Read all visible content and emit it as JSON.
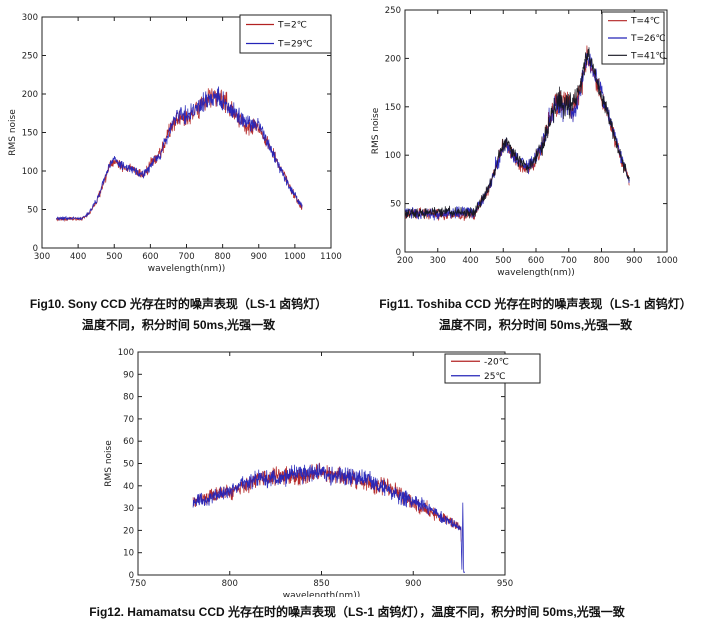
{
  "page": {
    "background": "#ffffff"
  },
  "figures": [
    {
      "id": "Fig10",
      "device": "Sony CCD",
      "caption": [
        "Fig10. Sony CCD 光存在时的噪声表现（LS-1 卤钨灯）",
        "温度不同，积分时间 50ms,光强一致"
      ]
    },
    {
      "id": "Fig11",
      "device": "Toshiba CCD",
      "caption": [
        "Fig11. Toshiba CCD 光存在时的噪声表现（LS-1 卤钨灯）",
        "温度不同，积分时间 50ms,光强一致"
      ]
    },
    {
      "id": "Fig12",
      "device": "Hamamatsu CCD",
      "caption": [
        "Fig12. Hamamatsu CCD 光存在时的噪声表现（LS-1 卤钨灯），温度不同，积分时间 50ms,光强一致"
      ]
    }
  ],
  "chart_data": [
    {
      "type": "line",
      "title": "",
      "xlabel": "wavelength(nm))",
      "ylabel": "RMS noise",
      "xlim": [
        300,
        1100
      ],
      "ylim": [
        0,
        300
      ],
      "xticks": [
        300,
        400,
        500,
        600,
        700,
        800,
        900,
        1000,
        1100
      ],
      "yticks": [
        0,
        50,
        100,
        150,
        200,
        250,
        300
      ],
      "grid": false,
      "legend_position": "top-right",
      "series": [
        {
          "name": "T=2℃",
          "color": "#b22222"
        },
        {
          "name": "T=29℃",
          "color": "#2424b8"
        }
      ],
      "x": [
        340,
        410,
        430,
        450,
        470,
        490,
        500,
        510,
        530,
        550,
        565,
        580,
        590,
        600,
        610,
        620,
        630,
        640,
        650,
        660,
        670,
        680,
        690,
        700,
        710,
        720,
        730,
        740,
        750,
        760,
        770,
        780,
        790,
        800,
        810,
        820,
        830,
        840,
        850,
        860,
        870,
        880,
        890,
        900,
        910,
        920,
        930,
        940,
        950,
        960,
        970,
        980,
        990,
        1000,
        1010,
        1020
      ],
      "values": [
        38,
        38,
        45,
        60,
        85,
        110,
        115,
        110,
        103,
        103,
        97,
        95,
        100,
        108,
        115,
        118,
        125,
        138,
        148,
        160,
        168,
        170,
        172,
        170,
        172,
        178,
        180,
        185,
        190,
        195,
        193,
        197,
        195,
        192,
        190,
        183,
        178,
        172,
        168,
        163,
        160,
        158,
        160,
        158,
        150,
        140,
        132,
        122,
        113,
        103,
        95,
        85,
        75,
        68,
        60,
        54
      ],
      "noise_x": [
        340,
        420,
        470,
        500,
        560,
        600,
        650,
        700,
        760,
        800,
        850,
        900,
        950,
        1000,
        1020
      ],
      "noise_amp": [
        1.5,
        1.5,
        4,
        5,
        4,
        5,
        7,
        8,
        9,
        9,
        8,
        7,
        5,
        4,
        3
      ]
    },
    {
      "type": "line",
      "title": "",
      "xlabel": "wavelength(nm))",
      "ylabel": "RMS noise",
      "xlim": [
        200,
        1000
      ],
      "ylim": [
        0,
        250
      ],
      "xticks": [
        200,
        300,
        400,
        500,
        600,
        700,
        800,
        900,
        1000
      ],
      "yticks": [
        0,
        50,
        100,
        150,
        200,
        250
      ],
      "grid": false,
      "legend_position": "top-right",
      "series": [
        {
          "name": "T=4℃",
          "color": "#b22222"
        },
        {
          "name": "T=26℃",
          "color": "#2424b8"
        },
        {
          "name": "T=41℃",
          "color": "#151520"
        }
      ],
      "x": [
        200,
        410,
        430,
        450,
        460,
        480,
        500,
        510,
        520,
        540,
        560,
        575,
        590,
        600,
        610,
        620,
        630,
        640,
        650,
        660,
        670,
        680,
        690,
        700,
        710,
        720,
        730,
        740,
        750,
        755,
        760,
        770,
        780,
        790,
        800,
        810,
        820,
        830,
        840,
        850,
        860,
        870,
        880,
        885
      ],
      "values": [
        40,
        40,
        50,
        62,
        70,
        90,
        110,
        112,
        105,
        95,
        90,
        87,
        92,
        98,
        105,
        112,
        122,
        135,
        145,
        152,
        155,
        153,
        150,
        152,
        148,
        152,
        160,
        175,
        195,
        205,
        200,
        192,
        182,
        172,
        162,
        152,
        142,
        130,
        118,
        108,
        97,
        88,
        78,
        72
      ],
      "noise_x": [
        200,
        400,
        450,
        500,
        560,
        600,
        650,
        700,
        755,
        800,
        850,
        885
      ],
      "noise_amp": [
        4,
        4,
        4,
        6,
        5,
        6,
        10,
        10,
        8,
        7,
        5,
        4
      ]
    },
    {
      "type": "line",
      "title": "",
      "xlabel": "wavelength(nm))",
      "ylabel": "RMS noise",
      "xlim": [
        750,
        950
      ],
      "ylim": [
        0,
        100
      ],
      "xticks": [
        750,
        800,
        850,
        900,
        950
      ],
      "yticks": [
        0,
        10,
        20,
        30,
        40,
        50,
        60,
        70,
        80,
        90,
        100
      ],
      "grid": false,
      "legend_position": "top-right",
      "series": [
        {
          "name": "-20℃",
          "color": "#b22222",
          "xmax": 926.2
        },
        {
          "name": "25℃",
          "color": "#2424b8"
        }
      ],
      "x": [
        780,
        790,
        800,
        810,
        815,
        820,
        830,
        840,
        850,
        855,
        860,
        865,
        870,
        875,
        880,
        885,
        890,
        895,
        900,
        905,
        910,
        915,
        920,
        924,
        926,
        926.5,
        927,
        927.5,
        928
      ],
      "values": [
        32,
        35,
        38,
        41,
        43,
        43,
        45,
        45,
        46,
        45,
        45,
        44,
        43,
        42,
        40,
        39,
        37,
        35,
        33,
        31,
        28,
        26,
        24,
        22,
        21,
        2,
        33,
        1,
        1
      ],
      "noise_x": [
        780,
        800,
        850,
        900,
        924,
        926,
        928
      ],
      "noise_amp": [
        2,
        2.5,
        3,
        2.5,
        1.5,
        0.6,
        0.3
      ]
    }
  ]
}
